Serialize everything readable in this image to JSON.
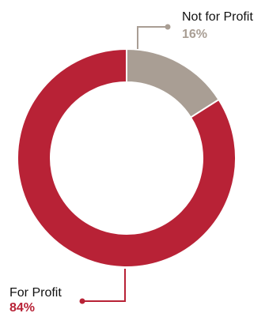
{
  "chart_data": {
    "type": "pie",
    "donut": true,
    "slices": [
      {
        "label": "Not for Profit",
        "value": 16,
        "value_label": "16%",
        "color": "#a99e94",
        "label_color": "#a99e94"
      },
      {
        "label": "For Profit",
        "value": 84,
        "value_label": "84%",
        "color": "#b82236",
        "label_color": "#b82236"
      }
    ],
    "legend": "none"
  }
}
